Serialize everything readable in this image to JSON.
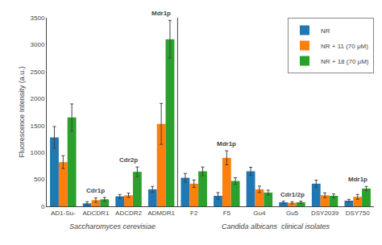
{
  "chart_data": {
    "type": "bar",
    "categories": [
      "AD1-Su-",
      "ADCDR1",
      "ADCDR2",
      "ADMDR1",
      "F2",
      "F5",
      "Gu4",
      "Gu5",
      "DSY2039",
      "DSY750"
    ],
    "series": [
      {
        "name": "NR",
        "values": [
          1280,
          55,
          185,
          315,
          530,
          195,
          650,
          75,
          420,
          105
        ],
        "errors": [
          200,
          30,
          35,
          55,
          80,
          60,
          75,
          20,
          65,
          25
        ]
      },
      {
        "name": "NR + 11 (70 μM)",
        "values": [
          820,
          115,
          205,
          1530,
          420,
          900,
          315,
          65,
          205,
          175
        ],
        "errors": [
          120,
          40,
          40,
          380,
          70,
          130,
          60,
          20,
          45,
          45
        ]
      },
      {
        "name": "NR + 18 (70 μM)",
        "values": [
          1650,
          130,
          640,
          3100,
          650,
          470,
          255,
          75,
          195,
          330
        ],
        "errors": [
          250,
          35,
          90,
          350,
          80,
          60,
          45,
          20,
          35,
          40
        ]
      }
    ],
    "annotations": [
      {
        "category": "ADCDR1",
        "text": "Cdr1p"
      },
      {
        "category": "ADCDR2",
        "text": "Cdr2p"
      },
      {
        "category": "ADMDR1",
        "text": "Mdr1p"
      },
      {
        "category": "F5",
        "text": "Mdr1p"
      },
      {
        "category": "Gu5",
        "text": "Cdr1/2p"
      },
      {
        "category": "DSY750",
        "text": "Mdr1p"
      }
    ],
    "groups": [
      {
        "label": "Saccharomyces cerevisiae",
        "categories": [
          "AD1-Su-",
          "ADCDR1",
          "ADCDR2",
          "ADMDR1"
        ]
      },
      {
        "label": "Candida albicans  clinical isolates",
        "categories": [
          "F2",
          "F5",
          "Gu4",
          "Gu5",
          "DSY2039",
          "DSY750"
        ]
      }
    ],
    "ylabel": "Fluorescence Intensity (a.u.)",
    "ylim": [
      0,
      3500
    ],
    "yticks": [
      0,
      500,
      1000,
      1500,
      2000,
      2500,
      3000,
      3500
    ],
    "grid": false,
    "legend": "upper right"
  }
}
